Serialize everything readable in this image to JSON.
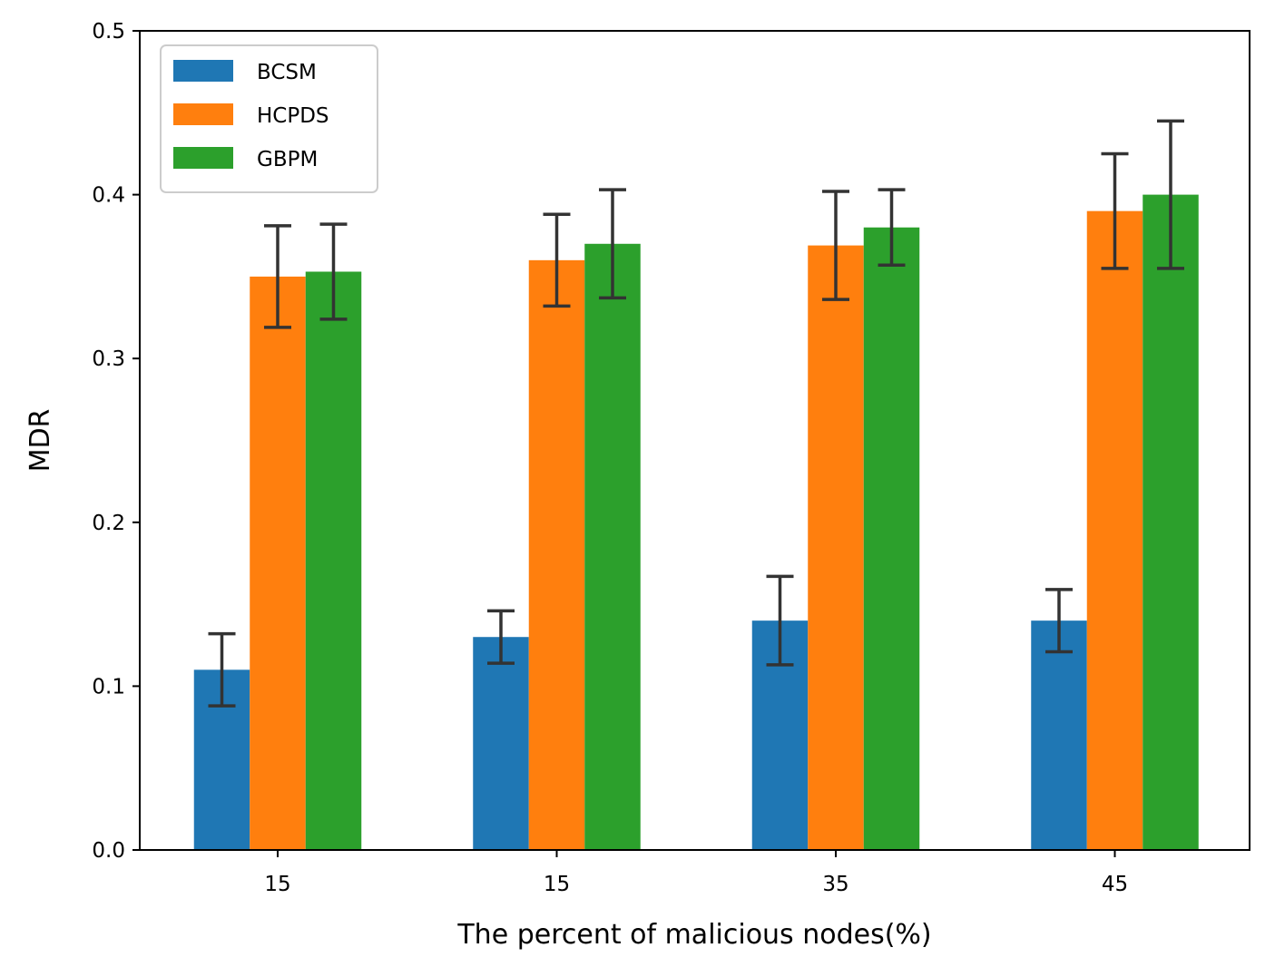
{
  "chart_data": {
    "type": "bar",
    "title": "",
    "xlabel": "The percent of malicious nodes(%)",
    "ylabel": "MDR",
    "categories": [
      "15",
      "15",
      "35",
      "45"
    ],
    "ylim": [
      0,
      0.5
    ],
    "yticks": [
      "0.0",
      "0.1",
      "0.2",
      "0.3",
      "0.4",
      "0.5"
    ],
    "grid": false,
    "legend_position": "top-left",
    "series": [
      {
        "name": "BCSM",
        "color": "#1f77b4",
        "values": [
          0.11,
          0.13,
          0.14,
          0.14
        ],
        "err_low": [
          0.088,
          0.114,
          0.113,
          0.121
        ],
        "err_high": [
          0.132,
          0.146,
          0.167,
          0.159
        ]
      },
      {
        "name": "HCPDS",
        "color": "#ff7f0e",
        "values": [
          0.35,
          0.36,
          0.369,
          0.39
        ],
        "err_low": [
          0.319,
          0.332,
          0.336,
          0.355
        ],
        "err_high": [
          0.381,
          0.388,
          0.402,
          0.425
        ]
      },
      {
        "name": "GBPM",
        "color": "#2ca02c",
        "values": [
          0.353,
          0.37,
          0.38,
          0.4
        ],
        "err_low": [
          0.324,
          0.337,
          0.357,
          0.355
        ],
        "err_high": [
          0.382,
          0.403,
          0.403,
          0.445
        ]
      }
    ],
    "errorbar_color": "#333333"
  }
}
